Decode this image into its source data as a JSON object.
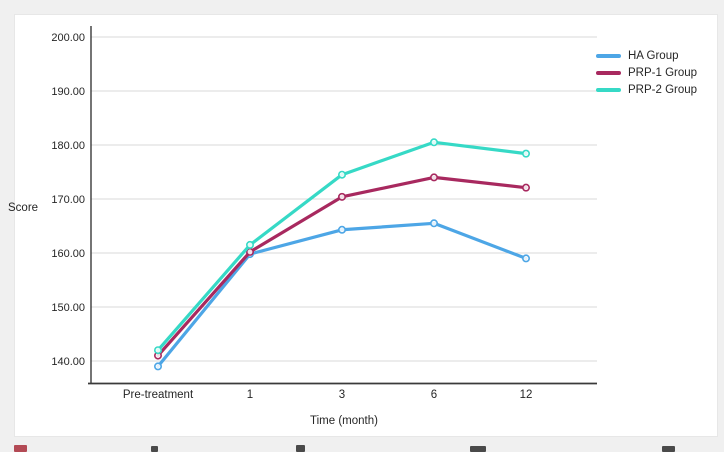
{
  "page": {
    "background_color": "#f0f0f0",
    "panel_color": "#ffffff"
  },
  "chart_data": {
    "type": "line",
    "title": "",
    "xlabel": "Time (month)",
    "ylabel": "Score",
    "categories": [
      "Pre-treatment",
      "1",
      "3",
      "6",
      "12"
    ],
    "series": [
      {
        "name": "HA Group",
        "color": "#4da6e6",
        "values": [
          139.0,
          159.8,
          164.3,
          165.5,
          159.0
        ]
      },
      {
        "name": "PRP-1 Group",
        "color": "#a8295f",
        "values": [
          141.0,
          160.2,
          170.4,
          174.0,
          172.1
        ]
      },
      {
        "name": "PRP-2 Group",
        "color": "#36d9c6",
        "values": [
          142.0,
          161.5,
          174.5,
          180.5,
          178.4
        ]
      }
    ],
    "yticks": [
      "140.00",
      "150.00",
      "160.00",
      "170.00",
      "180.00",
      "190.00",
      "200.00"
    ],
    "ytick_values": [
      140,
      150,
      160,
      170,
      180,
      190,
      200
    ],
    "ylim": [
      135.9,
      201.3
    ],
    "grid": "horizontal",
    "gridline_color": "#d9d9d9",
    "axis_line_color": "#3a3a3a",
    "marker_style": "open-circle",
    "legend_position": "top-right"
  }
}
